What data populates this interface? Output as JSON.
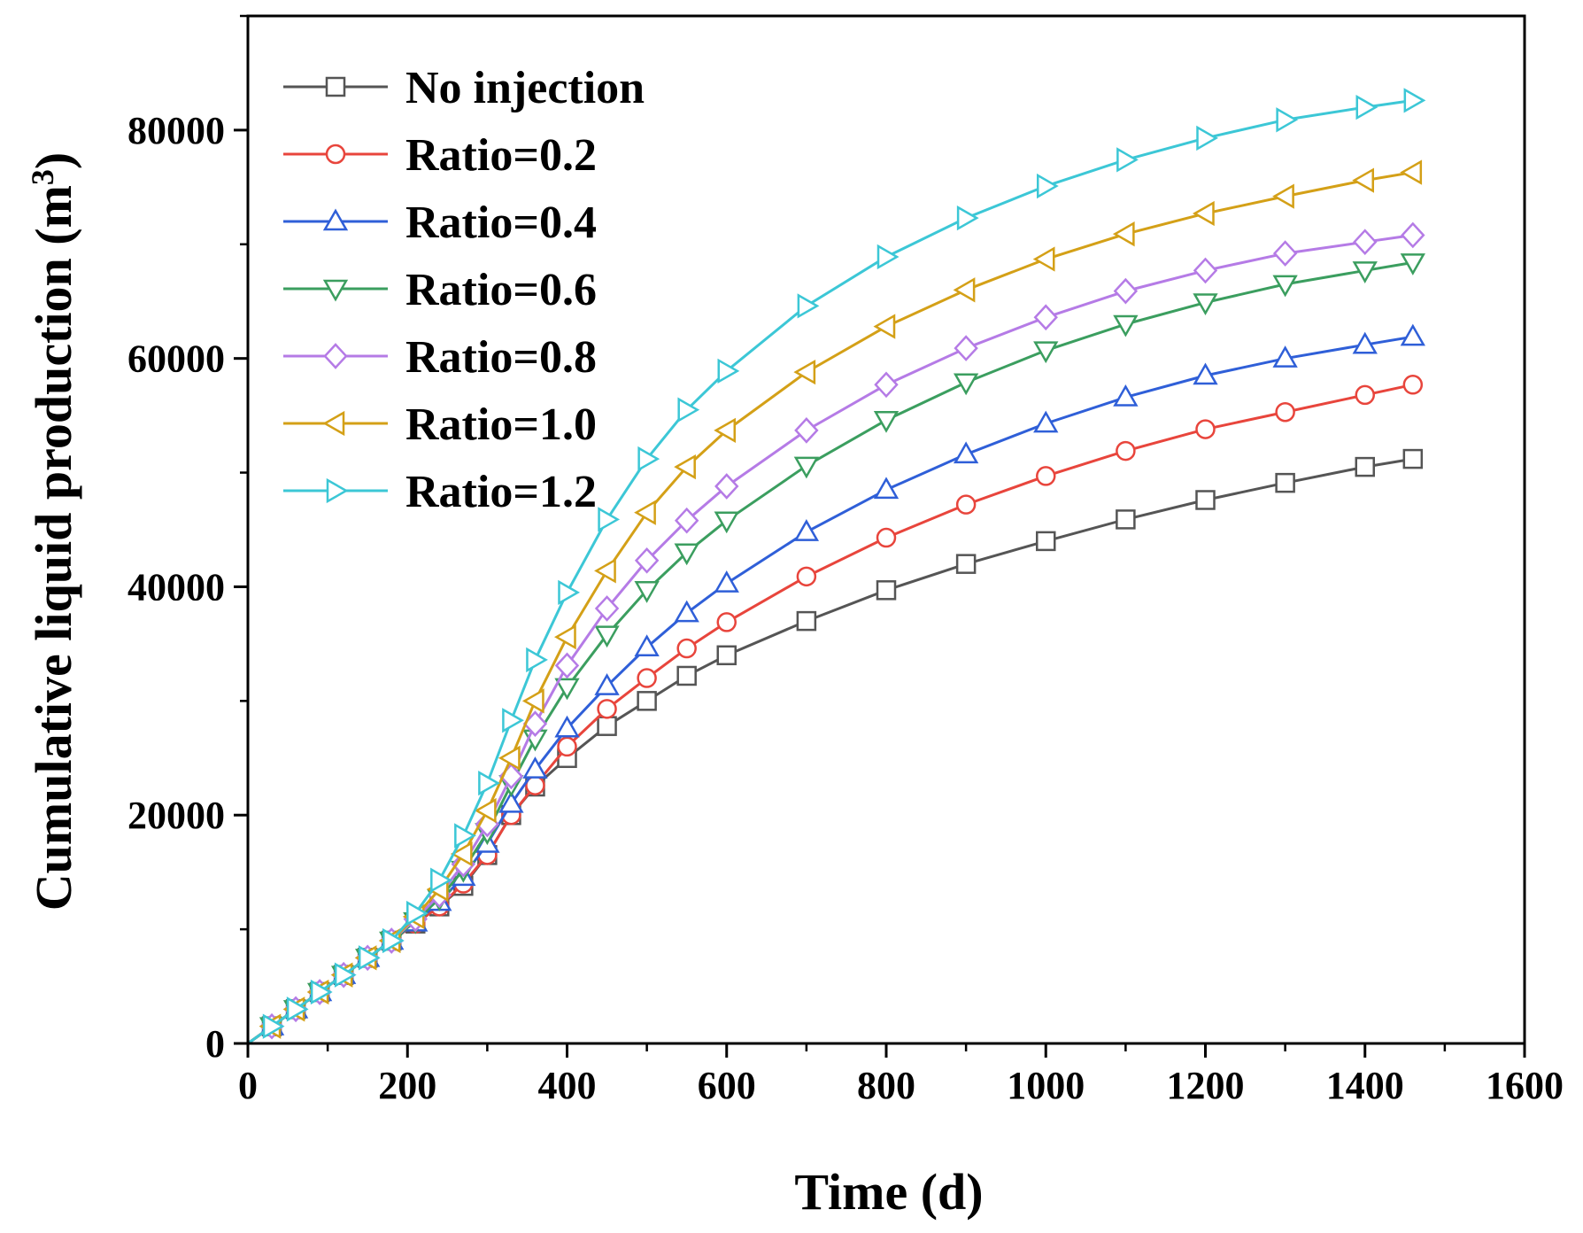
{
  "chart_data": {
    "type": "line",
    "title": "",
    "xlabel": "Time (d)",
    "ylabel_main": "Cumulative liquid production (m",
    "ylabel_sup": "3",
    "ylabel_close": ")",
    "xlim": [
      0,
      1600
    ],
    "ylim": [
      0,
      90000
    ],
    "xticks": [
      0,
      200,
      400,
      600,
      800,
      1000,
      1200,
      1400,
      1600
    ],
    "yticks": [
      0,
      20000,
      40000,
      60000,
      80000
    ],
    "legend_position": "top-left",
    "x": [
      0,
      30,
      60,
      90,
      120,
      150,
      180,
      210,
      240,
      270,
      300,
      330,
      360,
      400,
      450,
      500,
      550,
      600,
      700,
      800,
      900,
      1000,
      1100,
      1200,
      1300,
      1400,
      1460
    ],
    "series": [
      {
        "name": "No injection",
        "color": "#555555",
        "marker": "square",
        "values": [
          0,
          1500,
          3000,
          4500,
          6000,
          7500,
          9000,
          10500,
          12000,
          13800,
          16500,
          20000,
          22500,
          25000,
          27800,
          30000,
          32200,
          34000,
          37000,
          39700,
          42000,
          44000,
          45900,
          47600,
          49100,
          50500,
          51200
        ]
      },
      {
        "name": "Ratio=0.2",
        "color": "#e8453c",
        "marker": "circle",
        "values": [
          0,
          1500,
          3000,
          4500,
          6000,
          7500,
          9000,
          10500,
          12000,
          14000,
          16500,
          20000,
          22600,
          26000,
          29300,
          32000,
          34600,
          36900,
          40900,
          44300,
          47200,
          49700,
          51900,
          53800,
          55300,
          56800,
          57700
        ]
      },
      {
        "name": "Ratio=0.4",
        "color": "#2f5fd8",
        "marker": "triangle-up",
        "values": [
          0,
          1500,
          3000,
          4500,
          6000,
          7500,
          9000,
          10600,
          12400,
          14600,
          17500,
          21000,
          24000,
          27600,
          31300,
          34700,
          37700,
          40300,
          44800,
          48500,
          51600,
          54300,
          56600,
          58500,
          60000,
          61200,
          61900
        ]
      },
      {
        "name": "Ratio=0.6",
        "color": "#3b9e5f",
        "marker": "triangle-down",
        "values": [
          0,
          1500,
          3000,
          4500,
          6000,
          7500,
          9000,
          10700,
          12700,
          15200,
          18500,
          22700,
          26700,
          31200,
          35800,
          39700,
          43000,
          45800,
          50600,
          54600,
          57900,
          60700,
          63000,
          64900,
          66500,
          67700,
          68400
        ]
      },
      {
        "name": "Ratio=0.8",
        "color": "#b57be6",
        "marker": "diamond",
        "values": [
          0,
          1500,
          3000,
          4500,
          6000,
          7500,
          9000,
          10900,
          13000,
          15700,
          19200,
          23400,
          28000,
          33100,
          38100,
          42300,
          45800,
          48800,
          53700,
          57700,
          60900,
          63600,
          65900,
          67700,
          69200,
          70200,
          70800
        ]
      },
      {
        "name": "Ratio=1.0",
        "color": "#d4a017",
        "marker": "triangle-left",
        "values": [
          0,
          1500,
          3000,
          4500,
          6000,
          7500,
          9000,
          11100,
          13500,
          16600,
          20400,
          25000,
          30000,
          35600,
          41400,
          46500,
          50500,
          53700,
          58800,
          62800,
          66000,
          68700,
          70900,
          72700,
          74200,
          75600,
          76300
        ]
      },
      {
        "name": "Ratio=1.2",
        "color": "#3cc7d6",
        "marker": "triangle-right",
        "values": [
          0,
          1500,
          3000,
          4500,
          6000,
          7500,
          9000,
          11400,
          14300,
          18200,
          22800,
          28300,
          33600,
          39500,
          45900,
          51200,
          55500,
          58900,
          64600,
          68900,
          72300,
          75100,
          77400,
          79300,
          80900,
          82000,
          82600
        ]
      }
    ]
  }
}
